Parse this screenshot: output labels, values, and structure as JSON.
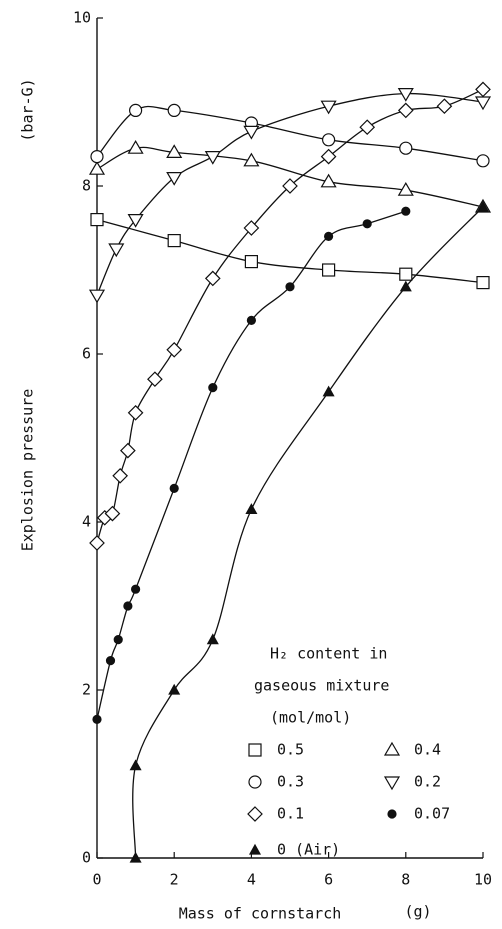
{
  "chart_data": {
    "type": "scatter",
    "ylabel": "Explosion pressure",
    "yunit": "(bar-G)",
    "xlabel": "Mass of cornstarch",
    "xunit": "(g)",
    "xlim": [
      0,
      10
    ],
    "ylim": [
      0,
      10
    ],
    "xticks": [
      0,
      2,
      4,
      6,
      8,
      10
    ],
    "yticks": [
      0,
      2,
      4,
      6,
      8,
      10
    ],
    "legend_title": [
      "H₂ content in",
      "gaseous mixture",
      "(mol/mol)"
    ],
    "series": [
      {
        "name": "0.5",
        "marker": "square",
        "filled": false,
        "color": "#111",
        "x": [
          0,
          2,
          4,
          6,
          8,
          10
        ],
        "y": [
          7.6,
          7.35,
          7.1,
          7.0,
          6.95,
          6.85
        ]
      },
      {
        "name": "0.4",
        "marker": "triangle-up",
        "filled": false,
        "color": "#111",
        "x": [
          0,
          1,
          2,
          4,
          6,
          8,
          10
        ],
        "y": [
          8.2,
          8.45,
          8.4,
          8.3,
          8.05,
          7.95,
          7.75
        ]
      },
      {
        "name": "0.3",
        "marker": "circle",
        "filled": false,
        "color": "#111",
        "x": [
          0,
          1,
          2,
          4,
          6,
          8,
          10
        ],
        "y": [
          8.35,
          8.9,
          8.9,
          8.75,
          8.55,
          8.45,
          8.3
        ]
      },
      {
        "name": "0.2",
        "marker": "triangle-down",
        "filled": false,
        "color": "#111",
        "x": [
          0,
          0.5,
          1,
          2,
          3,
          4,
          6,
          8,
          10
        ],
        "y": [
          6.7,
          7.25,
          7.6,
          8.1,
          8.35,
          8.65,
          8.95,
          9.1,
          9.0
        ]
      },
      {
        "name": "0.1",
        "marker": "diamond",
        "filled": false,
        "color": "#111",
        "x": [
          0,
          0.2,
          0.4,
          0.6,
          0.8,
          1,
          1.5,
          2,
          3,
          4,
          5,
          6,
          7,
          8,
          9,
          10
        ],
        "y": [
          3.75,
          4.05,
          4.1,
          4.55,
          4.85,
          5.3,
          5.7,
          6.05,
          6.9,
          7.5,
          8.0,
          8.35,
          8.7,
          8.9,
          8.95,
          9.15
        ]
      },
      {
        "name": "0.07",
        "marker": "circle",
        "filled": true,
        "color": "#111",
        "x": [
          0,
          0.35,
          0.55,
          0.8,
          1,
          2,
          3,
          4,
          5,
          6,
          7,
          8
        ],
        "y": [
          1.65,
          2.35,
          2.6,
          3.0,
          3.2,
          4.4,
          5.6,
          6.4,
          6.8,
          7.4,
          7.55,
          7.7
        ]
      },
      {
        "name": "0 (Air)",
        "marker": "triangle-up",
        "filled": true,
        "color": "#111",
        "x": [
          1,
          1,
          2,
          3,
          4,
          6,
          8,
          10
        ],
        "y": [
          0,
          1.1,
          2.0,
          2.6,
          4.15,
          5.55,
          6.8,
          7.75
        ]
      }
    ]
  }
}
